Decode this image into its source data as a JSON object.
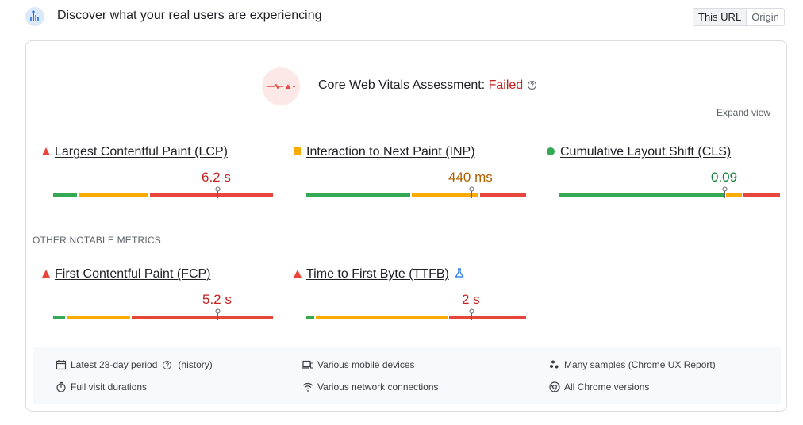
{
  "header": {
    "title": "Discover what your real users are experiencing",
    "icon": "crux-chart-icon",
    "toggle": {
      "this_url": "This URL",
      "origin": "Origin",
      "selected": "This URL"
    }
  },
  "assessment": {
    "label": "Core Web Vitals Assessment: ",
    "status": "Failed",
    "status_color": "#c5221f",
    "expand_view": "Expand view"
  },
  "core_metrics": [
    {
      "name": "Largest Contentful Paint (LCP)",
      "value": "6.2 s",
      "status": "poor",
      "status_icon": "red-triangle-icon",
      "value_color": "#c5221f",
      "distribution": {
        "good": 0.11,
        "needs_improvement": 0.32,
        "poor": 0.57
      }
    },
    {
      "name": "Interaction to Next Paint (INP)",
      "value": "440 ms",
      "status": "needs-improvement",
      "status_icon": "orange-square-icon",
      "value_color": "#b06000",
      "distribution": {
        "good": 0.47,
        "needs_improvement": 0.31,
        "poor": 0.22
      }
    },
    {
      "name": "Cumulative Layout Shift (CLS)",
      "value": "0.09",
      "status": "good",
      "status_icon": "green-circle-icon",
      "value_color": "#188038",
      "distribution": {
        "good": 0.75,
        "needs_improvement": 0.08,
        "poor": 0.17
      }
    }
  ],
  "other_metrics_label": "OTHER NOTABLE METRICS",
  "other_metrics": [
    {
      "name": "First Contentful Paint (FCP)",
      "value": "5.2 s",
      "status": "poor",
      "status_icon": "red-triangle-icon",
      "value_color": "#c5221f",
      "distribution": {
        "good": 0.06,
        "needs_improvement": 0.29,
        "poor": 0.65
      }
    },
    {
      "name": "Time to First Byte (TTFB)",
      "value": "2 s",
      "status": "poor",
      "status_icon": "red-triangle-icon",
      "experimental_icon": "beaker-icon",
      "value_color": "#c5221f",
      "distribution": {
        "good": 0.04,
        "needs_improvement": 0.65,
        "poor": 0.31
      }
    }
  ],
  "footer": {
    "period": "Latest 28-day period",
    "history_link": "history",
    "history_open": "(",
    "history_close": ")",
    "devices": "Various mobile devices",
    "samples_prefix": "Many samples (",
    "samples_link": "Chrome UX Report",
    "samples_suffix": ")",
    "durations": "Full visit durations",
    "network": "Various network connections",
    "versions": "All Chrome versions"
  },
  "colors": {
    "good": "#34a853",
    "needs_improvement": "#f9ab00",
    "poor": "#e8453c"
  }
}
